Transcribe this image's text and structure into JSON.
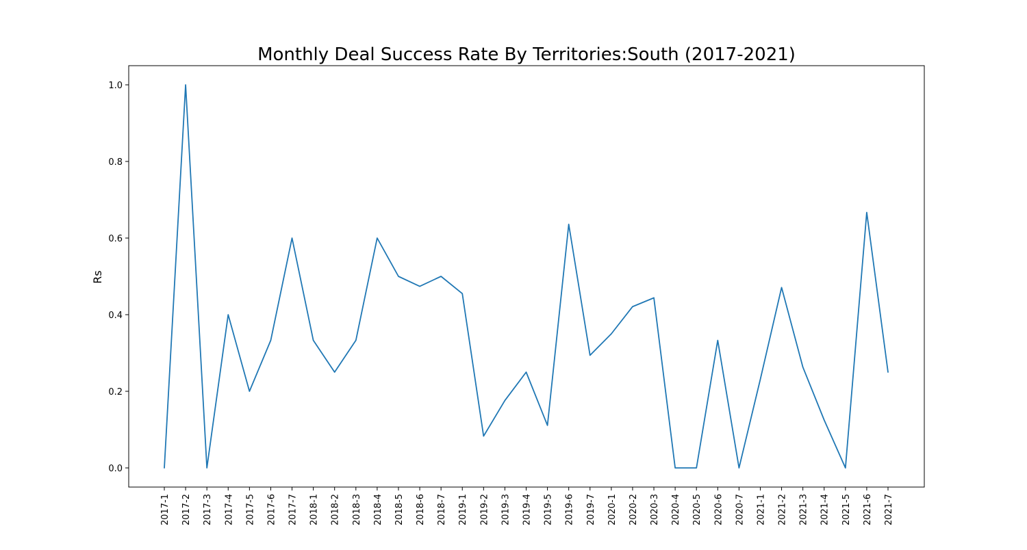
{
  "chart_data": {
    "type": "line",
    "title": "Monthly Deal Success Rate By Territories:South (2017-2021)",
    "xlabel": "",
    "ylabel": "Rs",
    "ylim": [
      -0.05,
      1.05
    ],
    "yticks": [
      0.0,
      0.2,
      0.4,
      0.6,
      0.8,
      1.0
    ],
    "ytick_labels": [
      "0.0",
      "0.2",
      "0.4",
      "0.6",
      "0.8",
      "1.0"
    ],
    "grid": false,
    "legend": false,
    "categories": [
      "2017-1",
      "2017-2",
      "2017-3",
      "2017-4",
      "2017-5",
      "2017-6",
      "2017-7",
      "2018-1",
      "2018-2",
      "2018-3",
      "2018-4",
      "2018-5",
      "2018-6",
      "2018-7",
      "2019-1",
      "2019-2",
      "2019-3",
      "2019-4",
      "2019-5",
      "2019-6",
      "2019-7",
      "2020-1",
      "2020-2",
      "2020-3",
      "2020-4",
      "2020-5",
      "2020-6",
      "2020-7",
      "2021-1",
      "2021-2",
      "2021-3",
      "2021-4",
      "2021-5",
      "2021-6",
      "2021-7"
    ],
    "series": [
      {
        "color": "#1f77b4",
        "values": [
          0.0,
          1.0,
          0.0,
          0.4,
          0.2,
          0.333,
          0.6,
          0.333,
          0.25,
          0.333,
          0.6,
          0.5,
          0.474,
          0.5,
          0.455,
          0.083,
          0.176,
          0.25,
          0.111,
          0.636,
          0.294,
          0.35,
          0.421,
          0.444,
          0.0,
          0.0,
          0.333,
          0.0,
          0.231,
          0.471,
          0.263,
          0.125,
          0.0,
          0.667,
          0.25
        ]
      }
    ]
  }
}
